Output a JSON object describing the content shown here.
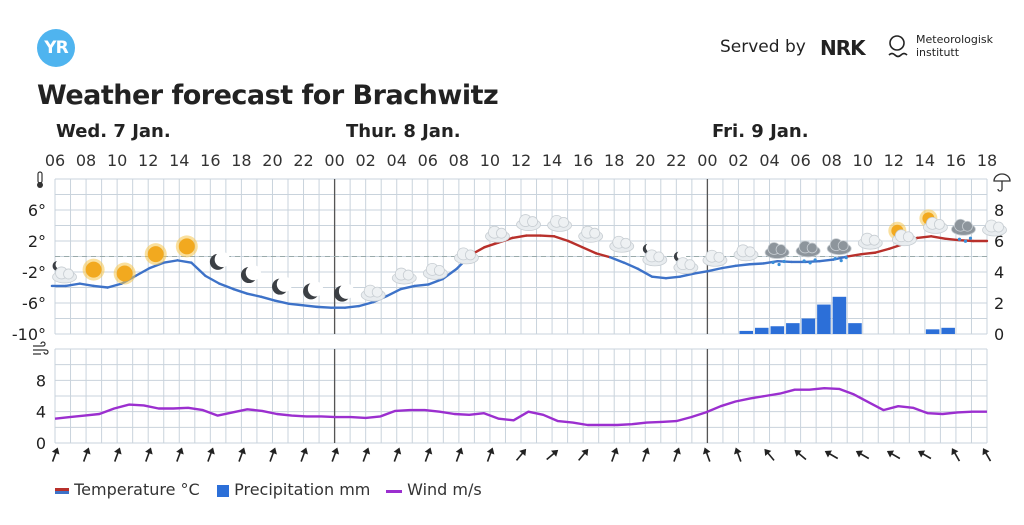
{
  "header": {
    "logo_text": "YR",
    "served_by": "Served by",
    "nrk": "NRK",
    "met_line1": "Meteorologisk",
    "met_line2": "institutt"
  },
  "title": "Weather forecast for Brachwitz",
  "days": [
    "Wed. 7 Jan.",
    "Thur. 8 Jan.",
    "Fri. 9 Jan."
  ],
  "legend": {
    "temperature": "Temperature °C",
    "precipitation": "Precipitation mm",
    "wind": "Wind m/s"
  },
  "colors": {
    "temp_cold": "#3d72c8",
    "temp_warm": "#b8302b",
    "precip": "#2c6fd8",
    "wind": "#9b2fcf",
    "grid": "#c9d3dc"
  },
  "chart_data": {
    "type": "line",
    "x_labels": [
      "06",
      "08",
      "10",
      "12",
      "14",
      "16",
      "18",
      "20",
      "22",
      "00",
      "02",
      "04",
      "06",
      "08",
      "10",
      "12",
      "14",
      "16",
      "18",
      "20",
      "22",
      "00",
      "02",
      "04",
      "06",
      "08",
      "10",
      "12",
      "14",
      "16",
      "18"
    ],
    "temperature": {
      "unit": "°C",
      "ticks": [
        "6°",
        "2°",
        "-2°",
        "-6°",
        "-10°"
      ],
      "ylim": [
        -10,
        10
      ],
      "values": [
        -3.8,
        -3.8,
        -3.5,
        -3.8,
        -4.0,
        -3.5,
        -2.5,
        -1.5,
        -0.8,
        -0.5,
        -0.8,
        -2.5,
        -3.5,
        -4.2,
        -4.8,
        -5.2,
        -5.7,
        -6.1,
        -6.3,
        -6.5,
        -6.6,
        -6.6,
        -6.4,
        -5.9,
        -5.1,
        -4.2,
        -3.8,
        -3.6,
        -2.9,
        -1.6,
        0.2,
        1.2,
        1.8,
        2.4,
        2.7,
        2.7,
        2.6,
        2.0,
        1.2,
        0.4,
        -0.1,
        -0.8,
        -1.6,
        -2.6,
        -2.8,
        -2.6,
        -2.2,
        -1.9,
        -1.5,
        -1.2,
        -1.0,
        -0.9,
        -0.6,
        -0.7,
        -0.7,
        -0.6,
        -0.4,
        0.0,
        0.3,
        0.5,
        1.0,
        1.6,
        2.4,
        2.6,
        2.3,
        2.1,
        2.0,
        2.0
      ]
    },
    "precipitation": {
      "unit": "mm",
      "ticks": [
        "8",
        "6",
        "4",
        "2",
        "0"
      ],
      "ylim": [
        0,
        10
      ],
      "bars": [
        {
          "hour": "03",
          "value": 0.2
        },
        {
          "hour": "04",
          "value": 0.4
        },
        {
          "hour": "05",
          "value": 0.5
        },
        {
          "hour": "06",
          "value": 0.7
        },
        {
          "hour": "07",
          "value": 1.0
        },
        {
          "hour": "08",
          "value": 1.9
        },
        {
          "hour": "09",
          "value": 2.4
        },
        {
          "hour": "10",
          "value": 0.7
        },
        {
          "hour": "15",
          "value": 0.3
        },
        {
          "hour": "16",
          "value": 0.4
        }
      ]
    },
    "wind": {
      "unit": "m/s",
      "ticks": [
        "8",
        "4",
        "0"
      ],
      "ylim": [
        0,
        12
      ],
      "values": [
        3.1,
        3.3,
        3.5,
        3.7,
        4.4,
        4.9,
        4.8,
        4.4,
        4.4,
        4.5,
        4.2,
        3.5,
        3.9,
        4.3,
        4.1,
        3.7,
        3.5,
        3.4,
        3.4,
        3.3,
        3.3,
        3.2,
        3.4,
        4.1,
        4.2,
        4.2,
        4.0,
        3.7,
        3.6,
        3.8,
        3.1,
        2.9,
        4.0,
        3.6,
        2.8,
        2.6,
        2.3,
        2.3,
        2.3,
        2.4,
        2.6,
        2.7,
        2.8,
        3.3,
        3.9,
        4.7,
        5.3,
        5.7,
        6.0,
        6.3,
        6.8,
        6.8,
        7.0,
        6.9,
        6.2,
        5.2,
        4.2,
        4.7,
        4.5,
        3.8,
        3.7,
        3.9,
        4.0,
        4.0
      ]
    },
    "weather_icons": [
      "moon-cloud",
      "sun",
      "sun",
      "sun",
      "sun",
      "moon",
      "moon",
      "moon",
      "moon",
      "moon",
      "cloud",
      "cloud",
      "cloud",
      "cloud",
      "cloud",
      "cloud",
      "cloud",
      "cloud",
      "cloud",
      "moon-cloud",
      "moon-cloud",
      "cloud",
      "cloud",
      "sleet-cloud",
      "sleet-cloud",
      "sleet-cloud",
      "cloud",
      "sun-cloud",
      "sun-cloud",
      "rain-cloud",
      "cloud"
    ],
    "wind_arrow_angles": [
      20,
      20,
      20,
      20,
      20,
      20,
      20,
      20,
      20,
      20,
      20,
      20,
      20,
      20,
      20,
      40,
      50,
      40,
      20,
      20,
      20,
      340,
      340,
      320,
      310,
      300,
      300,
      300,
      300,
      330,
      330
    ]
  }
}
